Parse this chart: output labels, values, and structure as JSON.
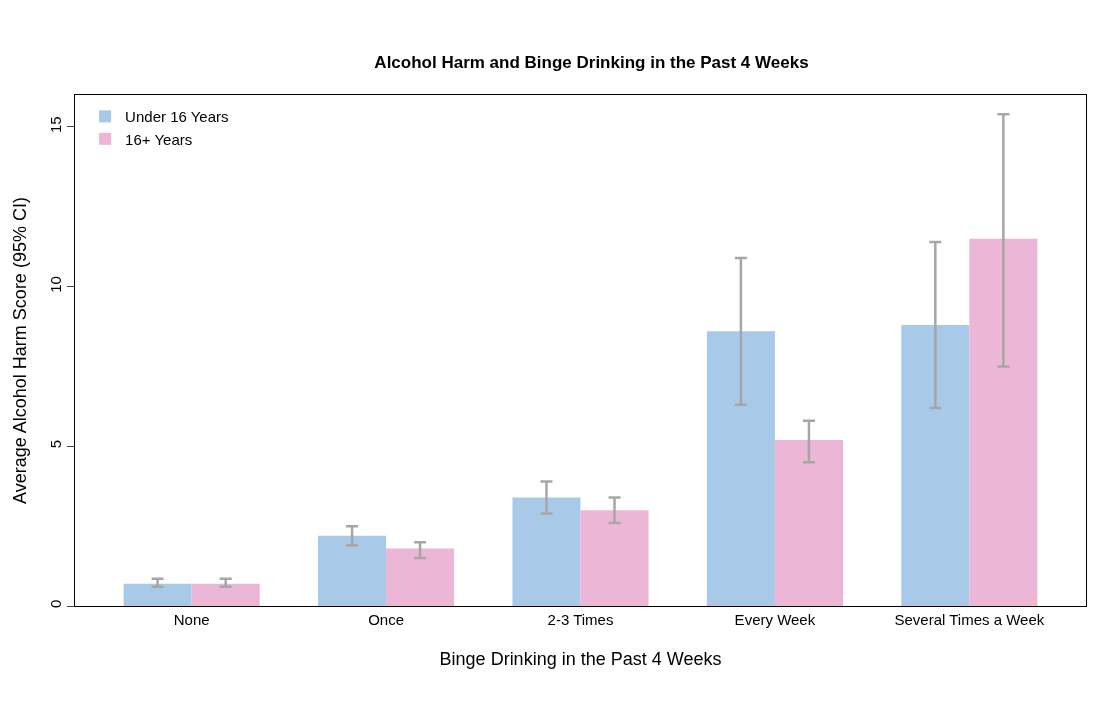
{
  "chart_data": {
    "type": "bar",
    "title": "Alcohol Harm and Binge Drinking in the Past 4 Weeks",
    "xlabel": "Binge Drinking in the Past 4 Weeks",
    "ylabel": "Average Alcohol Harm Score (95% CI)",
    "categories": [
      "None",
      "Once",
      "2-3 Times",
      "Every Week",
      "Several Times a Week"
    ],
    "series": [
      {
        "name": "Under 16 Years",
        "color": "#a9c9e9",
        "values": [
          0.7,
          2.2,
          3.4,
          8.6,
          8.8
        ],
        "errors": [
          [
            0.6,
            0.85
          ],
          [
            1.9,
            2.5
          ],
          [
            2.9,
            3.9
          ],
          [
            6.3,
            10.9
          ],
          [
            6.2,
            11.4
          ]
        ]
      },
      {
        "name": "16+ Years",
        "color": "#ecb6d6",
        "values": [
          0.7,
          1.8,
          3.0,
          5.2,
          11.5
        ],
        "errors": [
          [
            0.6,
            0.85
          ],
          [
            1.5,
            2.0
          ],
          [
            2.6,
            3.4
          ],
          [
            4.5,
            5.8
          ],
          [
            7.5,
            15.4
          ]
        ]
      }
    ],
    "ylim": [
      0,
      16
    ],
    "yticks": [
      0,
      5,
      10,
      15
    ],
    "legend": "top left"
  }
}
